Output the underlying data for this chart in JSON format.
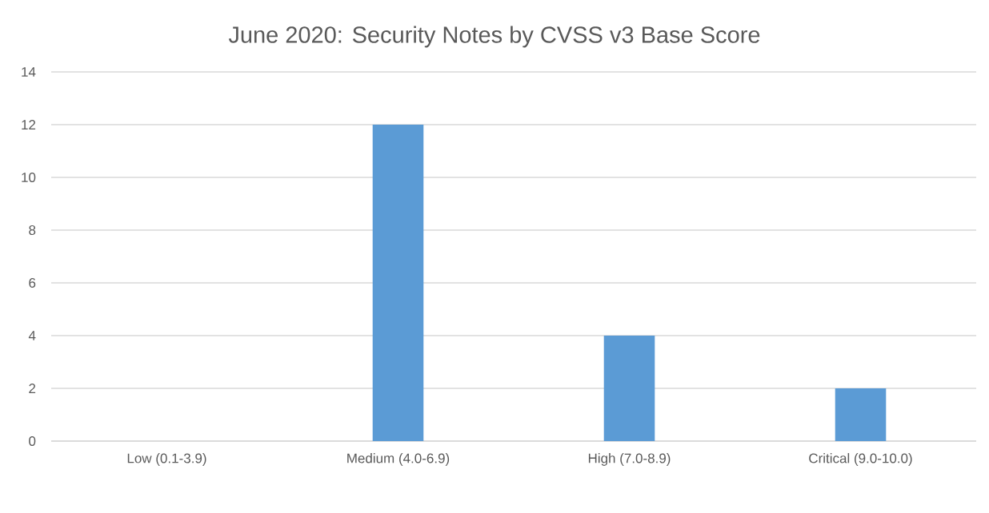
{
  "chart_data": {
    "type": "bar",
    "title": "June 2020: Security Notes by CVSS v3 Base Score",
    "categories": [
      "Low (0.1-3.9)",
      "Medium (4.0-6.9)",
      "High (7.0-8.9)",
      "Critical (9.0-10.0)"
    ],
    "values": [
      0,
      12,
      4,
      2
    ],
    "color": "#5b9bd5",
    "ylim": [
      0,
      14
    ],
    "yticks": [
      0,
      2,
      4,
      6,
      8,
      10,
      12,
      14
    ],
    "grid": "y"
  }
}
